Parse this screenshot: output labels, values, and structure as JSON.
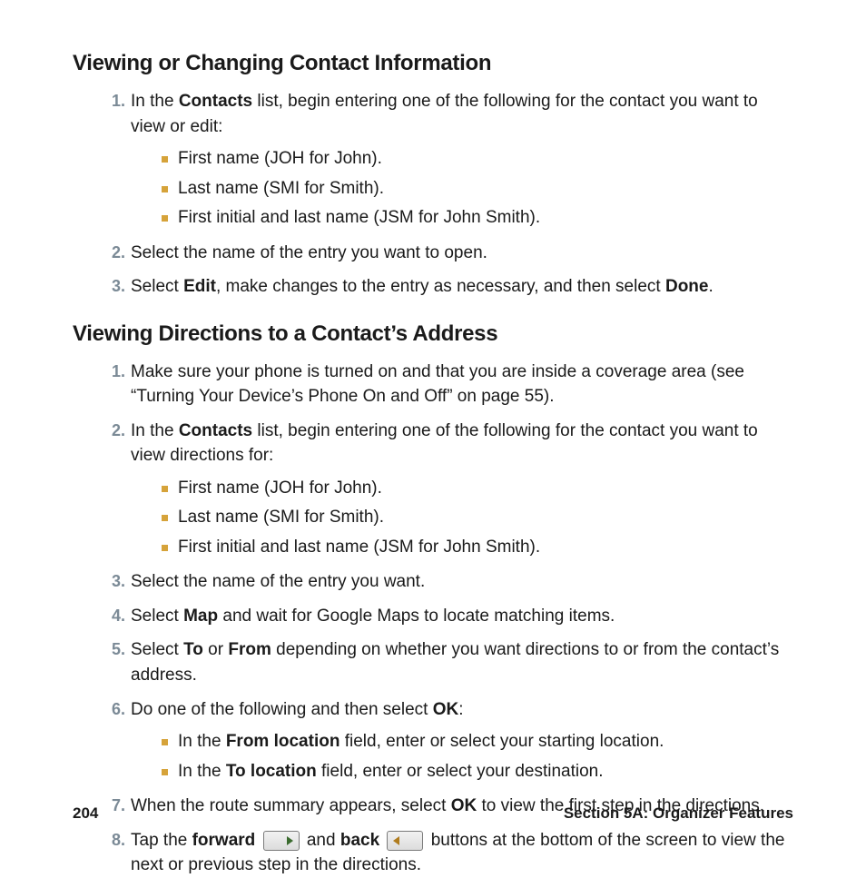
{
  "colors": {
    "text": "#1a1a1a",
    "step_number": "#7b8a96",
    "bullet": "#d6a33a",
    "background": "#ffffff",
    "button_border": "#7a7a7a",
    "button_bg_top": "#f2f2f2",
    "button_bg_bottom": "#dcdcdc",
    "forward_arrow": "#3a6b2e",
    "back_arrow": "#b07c1e"
  },
  "typography": {
    "heading_size_pt": 18,
    "body_size_pt": 14,
    "footer_size_pt": 13,
    "heading_weight": 700,
    "body_weight": 400
  },
  "section1": {
    "heading": "Viewing or Changing Contact Information",
    "steps": {
      "s1": {
        "num": "1.",
        "pre": "In the ",
        "bold1": "Contacts",
        "post": " list, begin entering one of the following for the contact you want to view or edit:",
        "bullets": {
          "b1": "First name (JOH for John).",
          "b2": "Last name (SMI for Smith).",
          "b3": "First initial and last name (JSM for John Smith)."
        }
      },
      "s2": {
        "num": "2.",
        "text": "Select the name of the entry you want to open."
      },
      "s3": {
        "num": "3.",
        "t1": "Select ",
        "b1": "Edit",
        "t2": ", make changes to the entry as necessary, and then select ",
        "b2": "Done",
        "t3": "."
      }
    }
  },
  "section2": {
    "heading": "Viewing Directions to a Contact’s Address",
    "steps": {
      "s1": {
        "num": "1.",
        "text": "Make sure your phone is turned on and that you are inside a coverage area (see “Turning Your Device’s Phone On and Off” on page 55)."
      },
      "s2": {
        "num": "2.",
        "pre": "In the ",
        "bold1": "Contacts",
        "post": " list, begin entering one of the following for the contact you want to view directions for:",
        "bullets": {
          "b1": "First name (JOH for John).",
          "b2": "Last name (SMI for Smith).",
          "b3": "First initial and last name (JSM for John Smith)."
        }
      },
      "s3": {
        "num": "3.",
        "text": "Select the name of the entry you want."
      },
      "s4": {
        "num": "4.",
        "t1": "Select ",
        "b1": "Map",
        "t2": " and wait for Google Maps to locate matching items."
      },
      "s5": {
        "num": "5.",
        "t1": "Select ",
        "b1": "To",
        "t2": " or ",
        "b2": "From",
        "t3": " depending on whether you want directions to or from the contact’s address."
      },
      "s6": {
        "num": "6.",
        "t1": "Do one of the following and then select ",
        "b1": "OK",
        "t2": ":",
        "bullets": {
          "b1_pre": "In the ",
          "b1_bold": "From location",
          "b1_post": " field, enter or select your starting location.",
          "b2_pre": "In the ",
          "b2_bold": "To location",
          "b2_post": " field, enter or select your destination."
        }
      },
      "s7": {
        "num": "7.",
        "t1": "When the route summary appears, select ",
        "b1": "OK",
        "t2": " to view the first step in the directions."
      },
      "s8": {
        "num": "8.",
        "t1": "Tap the ",
        "b1": "forward",
        "t2": " and ",
        "b2": "back",
        "t3": " buttons at the bottom of the screen to view the next or previous step in the directions."
      }
    }
  },
  "footer": {
    "page_number": "204",
    "section_label": "Section 5A: Organizer Features"
  }
}
